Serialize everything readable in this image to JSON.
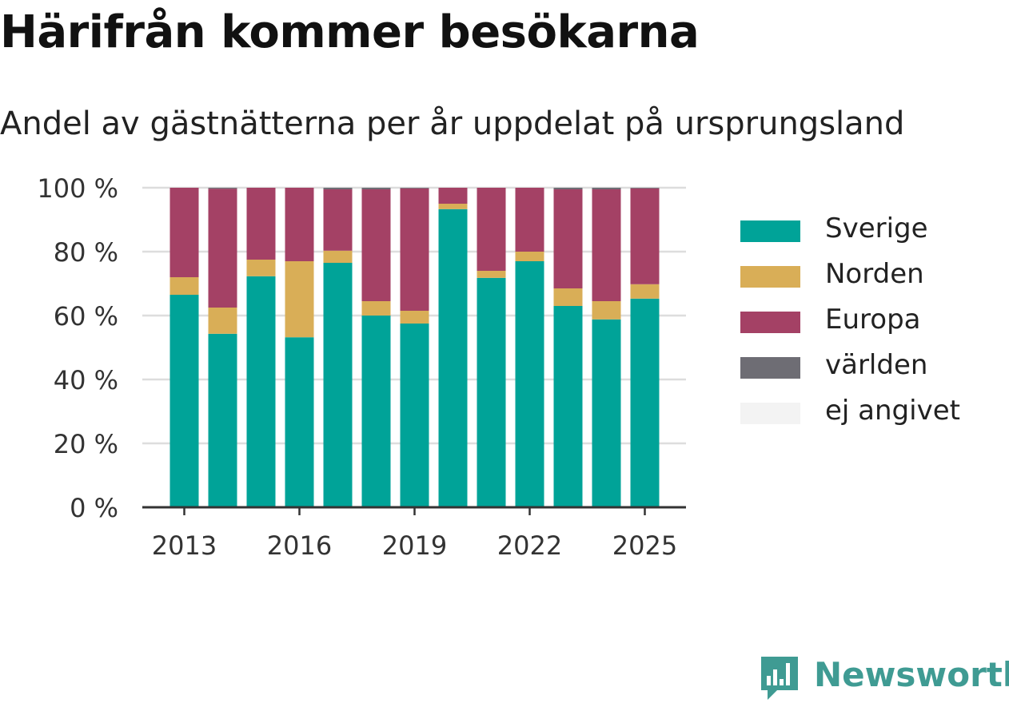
{
  "header": {
    "title": "Härifrån kommer besökarna",
    "subtitle": "Andel av gästnätterna per år uppdelat på ursprungsland"
  },
  "colors": {
    "Sverige": "#00a398",
    "Norden": "#d9ae57",
    "Europa": "#a44165",
    "världen": "#6e6d74",
    "ej angivet": "#f3f3f3",
    "grid": "#dddddd",
    "axis": "#333333",
    "brand": "#3f9b93"
  },
  "chart_data": {
    "type": "bar",
    "stacked": true,
    "categories": [
      "2013",
      "2014",
      "2015",
      "2016",
      "2017",
      "2018",
      "2019",
      "2020",
      "2021",
      "2022",
      "2023",
      "2024",
      "2025"
    ],
    "x_tick_labels": [
      "2013",
      "2016",
      "2019",
      "2022",
      "2025"
    ],
    "y_ticks": [
      0,
      20,
      40,
      60,
      80,
      100
    ],
    "y_tick_suffix": " %",
    "ylim": [
      0,
      100
    ],
    "grid": true,
    "legend_position": "right",
    "series": [
      {
        "name": "Sverige",
        "values": [
          66.5,
          54.3,
          72.3,
          53.2,
          76.5,
          60.0,
          57.5,
          93.3,
          71.8,
          77.0,
          63.0,
          58.8,
          65.3
        ]
      },
      {
        "name": "Norden",
        "values": [
          5.5,
          8.2,
          5.2,
          23.8,
          3.8,
          4.5,
          4.0,
          1.7,
          2.2,
          3.0,
          5.5,
          5.7,
          4.5
        ]
      },
      {
        "name": "Europa",
        "values": [
          28.0,
          37.2,
          22.5,
          23.0,
          19.2,
          35.0,
          38.3,
          5.0,
          26.0,
          20.0,
          31.0,
          35.0,
          30.0
        ]
      },
      {
        "name": "världen",
        "values": [
          0.0,
          0.3,
          0.0,
          0.0,
          0.5,
          0.5,
          0.2,
          0.0,
          0.0,
          0.0,
          0.5,
          0.5,
          0.2
        ]
      },
      {
        "name": "ej angivet",
        "values": [
          0.0,
          0.0,
          0.0,
          0.0,
          0.0,
          0.0,
          0.0,
          0.0,
          0.0,
          0.0,
          0.0,
          0.0,
          0.0
        ]
      }
    ]
  },
  "legend": {
    "items": [
      "Sverige",
      "Norden",
      "Europa",
      "världen",
      "ej angivet"
    ]
  },
  "brand": {
    "name": "Newsworthy",
    "icon": "newsworthy-logo-icon"
  }
}
